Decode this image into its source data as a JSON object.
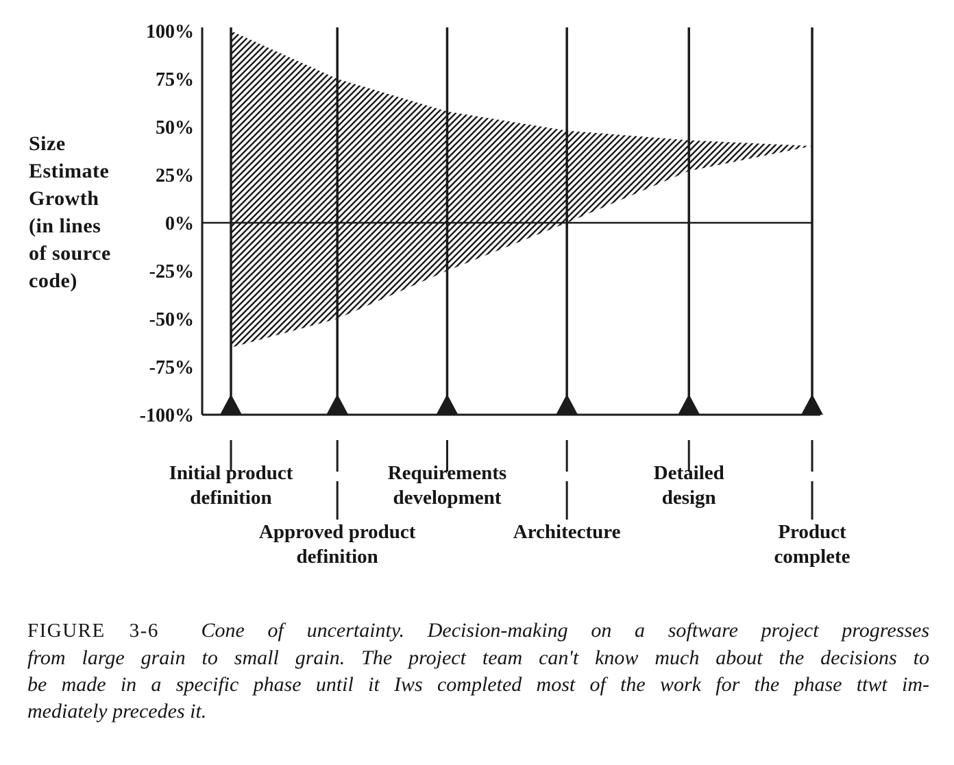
{
  "figure": {
    "y_axis_title_lines": [
      "Size",
      "Estimate",
      "Growth",
      "(in lines",
      "of source",
      "code)"
    ]
  },
  "chart_data": {
    "type": "area",
    "title": "Cone of uncertainty",
    "ylabel": "Size Estimate Growth (in lines of source code)",
    "ylim": [
      -100,
      100
    ],
    "grid": false,
    "legend": "none",
    "fill_style": "diagonal-hatch",
    "y_tick_labels": [
      "100%",
      "75%",
      "50%",
      "25%",
      "0%",
      "-25%",
      "-50%",
      "-75%",
      "-100%"
    ],
    "milestones": [
      "Initial product definition",
      "Approved product definition",
      "Requirements development",
      "Architecture",
      "Detailed design",
      "Product complete"
    ],
    "milestone_x_rel": [
      0,
      0.183,
      0.372,
      0.578,
      0.788,
      1
    ],
    "series": [
      {
        "name": "upper uncertainty bound (%)",
        "values": [
          100,
          75,
          58,
          48,
          43,
          40
        ]
      },
      {
        "name": "lower uncertainty bound (%)",
        "values": [
          -65,
          -50,
          -25,
          0,
          27,
          40
        ]
      }
    ],
    "zero_line": 0,
    "baseline": -100,
    "phase_labels": [
      {
        "milestone": 0,
        "row": 1,
        "lines": [
          "Initial product",
          "definition"
        ]
      },
      {
        "milestone": 1,
        "row": 2,
        "lines": [
          "Approved product",
          "definition"
        ]
      },
      {
        "milestone": 2,
        "row": 1,
        "lines": [
          "Requirements",
          "development"
        ]
      },
      {
        "milestone": 3,
        "row": 2,
        "lines": [
          "Architecture"
        ]
      },
      {
        "milestone": 4,
        "row": 1,
        "lines": [
          "Detailed",
          "design"
        ]
      },
      {
        "milestone": 5,
        "row": 2,
        "lines": [
          "Product",
          "complete"
        ]
      }
    ],
    "ink_color": "#1b1b1b"
  },
  "caption": {
    "label": "FIGURE 3-6",
    "lines": [
      "Cone of uncertainty. Decision-making on a software project progresses",
      "from large grain to small grain. The project team can't know much about the decisions to",
      "be made in a specific phase until it Iws completed most of the work for the phase ttwt im-",
      "mediately precedes it."
    ]
  }
}
